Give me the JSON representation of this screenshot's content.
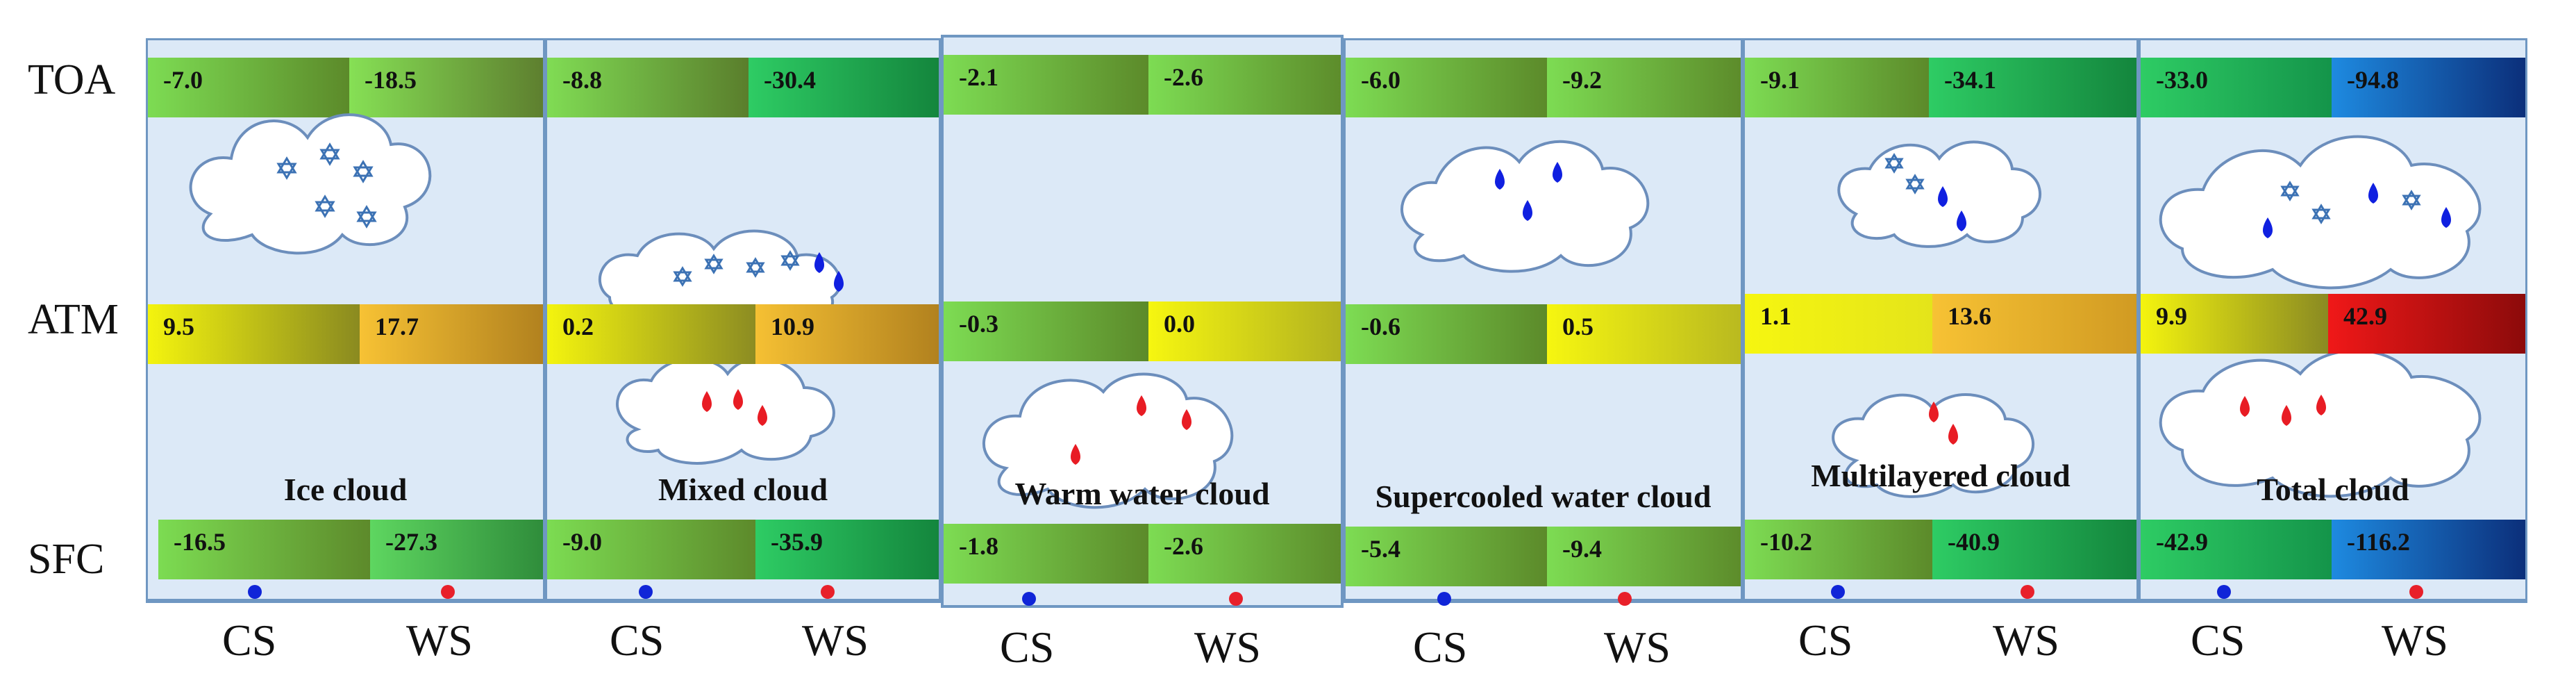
{
  "row_labels": {
    "toa": "TOA",
    "atm": "ATM",
    "sfc": "SFC"
  },
  "axis_labels": {
    "cs": "CS",
    "ws": "WS"
  },
  "colors": {
    "cs_marker": "#1025d8",
    "ws_marker": "#e8202a",
    "panel_bg": "#dce9f7",
    "panel_border": "#6f97c2",
    "ice_crystal": "#3c72b4",
    "cold_drop": "#1020e0",
    "warm_drop": "#e81c24"
  },
  "panels": [
    {
      "title": "Ice cloud",
      "toa": {
        "cs": "-7.0",
        "ws": "-18.5"
      },
      "atm": {
        "cs": "9.5",
        "ws": "17.7"
      },
      "sfc": {
        "cs": "-16.5",
        "ws": "-27.3"
      }
    },
    {
      "title": "Mixed cloud",
      "toa": {
        "cs": "-8.8",
        "ws": "-30.4"
      },
      "atm": {
        "cs": "0.2",
        "ws": "10.9"
      },
      "sfc": {
        "cs": "-9.0",
        "ws": "-35.9"
      }
    },
    {
      "title": "Warm water cloud",
      "toa": {
        "cs": "-2.1",
        "ws": "-2.6"
      },
      "atm": {
        "cs": "-0.3",
        "ws": "0.0"
      },
      "sfc": {
        "cs": "-1.8",
        "ws": "-2.6"
      }
    },
    {
      "title": "Supercooled water cloud",
      "toa": {
        "cs": "-6.0",
        "ws": "-9.2"
      },
      "atm": {
        "cs": "-0.6",
        "ws": "0.5"
      },
      "sfc": {
        "cs": "-5.4",
        "ws": "-9.4"
      }
    },
    {
      "title": "Multilayered cloud",
      "toa": {
        "cs": "-9.1",
        "ws": "-34.1"
      },
      "atm": {
        "cs": "1.1",
        "ws": "13.6"
      },
      "sfc": {
        "cs": "-10.2",
        "ws": "-40.9"
      }
    },
    {
      "title": "Total cloud",
      "toa": {
        "cs": "-33.0",
        "ws": "-94.8"
      },
      "atm": {
        "cs": "9.9",
        "ws": "42.9"
      },
      "sfc": {
        "cs": "-42.9",
        "ws": "-116.2"
      }
    }
  ]
}
